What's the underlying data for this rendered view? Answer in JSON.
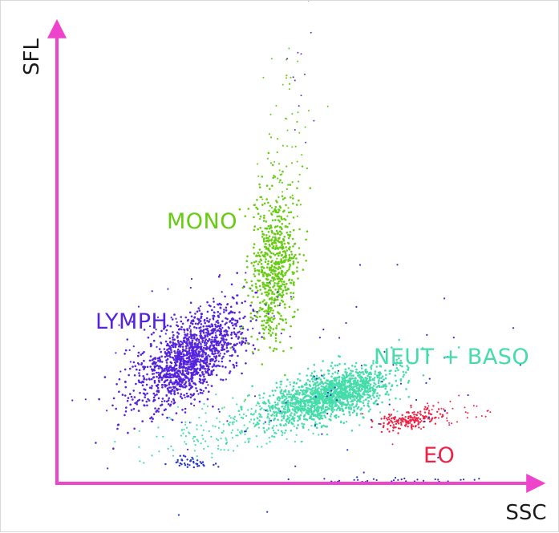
{
  "chart_data": {
    "type": "scatter",
    "x_axis_label": "SSC",
    "y_axis_label": "SFL",
    "grid": false,
    "axis_color": "#ee44cc",
    "populations": [
      {
        "name": "LYMPH",
        "color": "#5522dd"
      },
      {
        "name": "MONO",
        "color": "#66cc11"
      },
      {
        "name": "NEUT + BASO",
        "color": "#44ddaa"
      },
      {
        "name": "EO",
        "color": "#ee2244"
      }
    ]
  }
}
